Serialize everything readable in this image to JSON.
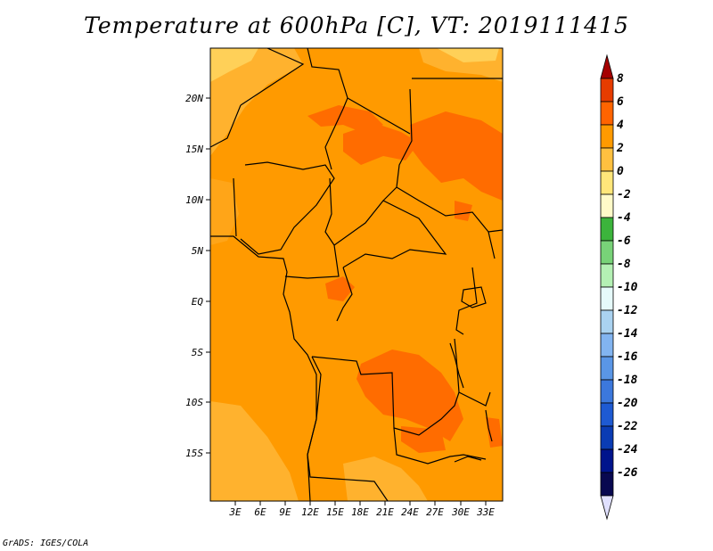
{
  "title": "Temperature at 600hPa [C], VT: 2019111415",
  "footer": "GrADS: IGES/COLA",
  "map": {
    "lat_labels": [
      "20N",
      "15N",
      "10N",
      "5N",
      "EQ",
      "5S",
      "10S",
      "15S"
    ],
    "lon_labels": [
      "3E",
      "6E",
      "9E",
      "12E",
      "15E",
      "18E",
      "21E",
      "24E",
      "27E",
      "30E",
      "33E"
    ]
  },
  "colorbar": {
    "labels": [
      "8",
      "6",
      "4",
      "2",
      "0",
      "-2",
      "-4",
      "-6",
      "-8",
      "-10",
      "-12",
      "-14",
      "-16",
      "-18",
      "-20",
      "-22",
      "-24",
      "-26"
    ],
    "colors": [
      "#a50000",
      "#e63c00",
      "#ff6400",
      "#ff9a00",
      "#ffc040",
      "#ffe67a",
      "#fffac8",
      "#3cb43c",
      "#78d278",
      "#b4f0b4",
      "#e6fafa",
      "#aad2f0",
      "#82b4f0",
      "#5a96e6",
      "#3c78dc",
      "#1e5ad2",
      "#0a3cb4",
      "#00148c",
      "#080850",
      "#e0e0ff"
    ]
  }
}
